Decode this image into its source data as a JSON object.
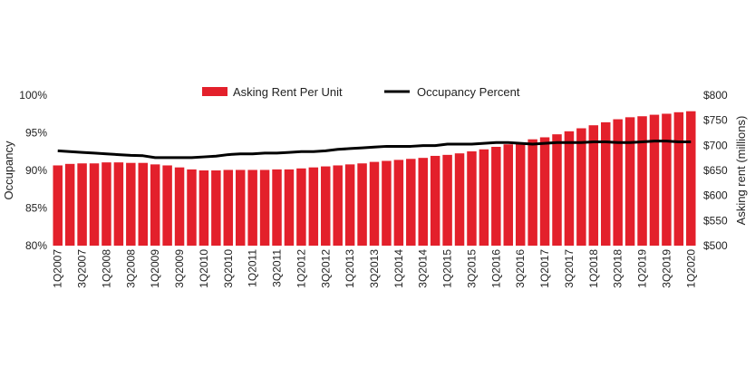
{
  "chart_data": {
    "type": "bar+line",
    "title": "",
    "categories": [
      "1Q2007",
      "2Q2007",
      "3Q2007",
      "4Q2007",
      "1Q2008",
      "2Q2008",
      "3Q2008",
      "4Q2008",
      "1Q2009",
      "2Q2009",
      "3Q2009",
      "4Q2009",
      "1Q2010",
      "2Q2010",
      "3Q2010",
      "4Q2010",
      "1Q2011",
      "2Q2011",
      "3Q2011",
      "4Q2011",
      "1Q2012",
      "2Q2012",
      "3Q2012",
      "4Q2012",
      "1Q2013",
      "2Q2013",
      "3Q2013",
      "4Q2013",
      "1Q2014",
      "2Q2014",
      "3Q2014",
      "4Q2014",
      "1Q2015",
      "2Q2015",
      "3Q2015",
      "4Q2015",
      "1Q2016",
      "2Q2016",
      "3Q2016",
      "4Q2016",
      "1Q2017",
      "2Q2017",
      "3Q2017",
      "4Q2017",
      "1Q2018",
      "2Q2018",
      "3Q2018",
      "4Q2018",
      "1Q2019",
      "2Q2019",
      "3Q2019",
      "4Q2019",
      "1Q2020"
    ],
    "xtick_labels": [
      "1Q2007",
      "3Q2007",
      "1Q2008",
      "3Q2008",
      "1Q2009",
      "3Q2009",
      "1Q2010",
      "3Q2010",
      "1Q2011",
      "3Q2011",
      "1Q2012",
      "3Q2012",
      "1Q2013",
      "3Q2013",
      "1Q2014",
      "3Q2014",
      "1Q2015",
      "3Q2015",
      "1Q2016",
      "3Q2016",
      "1Q2017",
      "3Q2017",
      "1Q2018",
      "3Q2018",
      "1Q2019",
      "3Q2019",
      "1Q2020"
    ],
    "series": [
      {
        "name": "Asking Rent Per Unit",
        "kind": "bar",
        "axis": "right",
        "color": "#e3202b",
        "values": [
          660,
          663,
          664,
          664,
          666,
          666,
          665,
          665,
          662,
          660,
          656,
          652,
          650,
          650,
          651,
          651,
          651,
          651,
          652,
          652,
          654,
          656,
          658,
          660,
          662,
          664,
          667,
          669,
          671,
          673,
          675,
          679,
          681,
          684,
          688,
          692,
          697,
          702,
          706,
          712,
          716,
          722,
          728,
          734,
          740,
          746,
          752,
          756,
          758,
          761,
          763,
          766,
          768
        ]
      },
      {
        "name": "Occupancy Percent",
        "kind": "line",
        "axis": "left",
        "color": "#000000",
        "values": [
          92.6,
          92.5,
          92.4,
          92.3,
          92.2,
          92.1,
          92.0,
          91.95,
          91.7,
          91.7,
          91.7,
          91.7,
          91.8,
          91.9,
          92.1,
          92.2,
          92.2,
          92.3,
          92.3,
          92.4,
          92.5,
          92.5,
          92.6,
          92.8,
          92.9,
          93.0,
          93.1,
          93.2,
          93.2,
          93.2,
          93.3,
          93.3,
          93.5,
          93.5,
          93.5,
          93.6,
          93.7,
          93.7,
          93.6,
          93.5,
          93.6,
          93.7,
          93.7,
          93.7,
          93.8,
          93.8,
          93.7,
          93.7,
          93.8,
          93.9,
          93.9,
          93.8,
          93.8
        ]
      }
    ],
    "ylabel_left": "Occupancy",
    "ylabel_right": "Asking rent (millions)",
    "ylim_left": [
      80,
      100
    ],
    "ylim_right": [
      500,
      800
    ],
    "yticks_left": [
      "80%",
      "85%",
      "90%",
      "95%",
      "100%"
    ],
    "yticks_left_values": [
      80,
      85,
      90,
      95,
      100
    ],
    "yticks_right": [
      "$500",
      "$550",
      "$600",
      "$650",
      "$700",
      "$750",
      "$800"
    ],
    "yticks_right_values": [
      500,
      550,
      600,
      650,
      700,
      750,
      800
    ],
    "legend": [
      "Asking Rent Per Unit",
      "Occupancy Percent"
    ],
    "legend_position": "top-center",
    "grid": false
  }
}
